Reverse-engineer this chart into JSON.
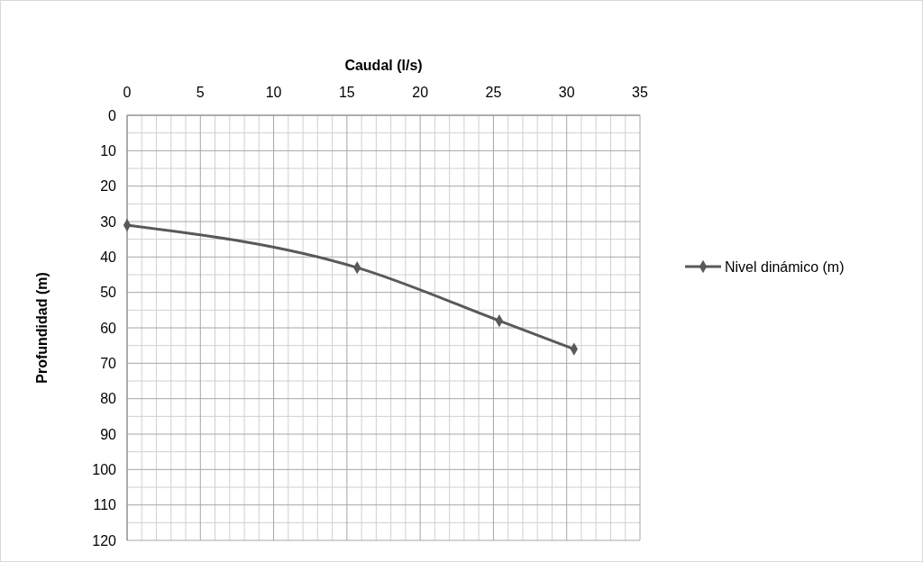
{
  "chart_data": {
    "type": "line",
    "xlabel": "Caudal (l/s)",
    "ylabel": "Profundidad (m)",
    "x": [
      0,
      15.7,
      25.4,
      30.5
    ],
    "series": [
      {
        "name": "Nivel dinámico (m)",
        "color": "#595959",
        "values": [
          31,
          43,
          58,
          66
        ]
      }
    ],
    "xlim": [
      0,
      35
    ],
    "xticks": [
      0,
      5,
      10,
      15,
      20,
      25,
      30,
      35
    ],
    "ylim": [
      120,
      0
    ],
    "yticks": [
      0,
      10,
      20,
      30,
      40,
      50,
      60,
      70,
      80,
      90,
      100,
      110,
      120
    ],
    "grid": true,
    "legend": "right",
    "marker": "diamond",
    "line_style": "solid"
  }
}
